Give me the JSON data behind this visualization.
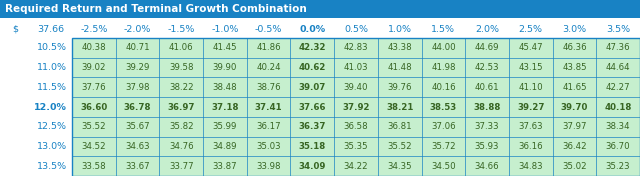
{
  "title": "Required Return and Terminal Growth Combination",
  "title_bg": "#1882C4",
  "title_fg": "#FFFFFF",
  "header_label_dollar": "$",
  "header_label_value": "37.66",
  "col_headers": [
    "-2.5%",
    "-2.0%",
    "-1.5%",
    "-1.0%",
    "-0.5%",
    "0.0%",
    "0.5%",
    "1.0%",
    "1.5%",
    "2.0%",
    "2.5%",
    "3.0%",
    "3.5%"
  ],
  "row_headers": [
    "10.5%",
    "11.0%",
    "11.5%",
    "12.0%",
    "12.5%",
    "13.0%",
    "13.5%"
  ],
  "bold_col": "0.0%",
  "bold_row": "12.0%",
  "data": [
    [
      40.38,
      40.71,
      41.06,
      41.45,
      41.86,
      42.32,
      42.83,
      43.38,
      44.0,
      44.69,
      45.47,
      46.36,
      47.36
    ],
    [
      39.02,
      39.29,
      39.58,
      39.9,
      40.24,
      40.62,
      41.03,
      41.48,
      41.98,
      42.53,
      43.15,
      43.85,
      44.64
    ],
    [
      37.76,
      37.98,
      38.22,
      38.48,
      38.76,
      39.07,
      39.4,
      39.76,
      40.16,
      40.61,
      41.1,
      41.65,
      42.27
    ],
    [
      36.6,
      36.78,
      36.97,
      37.18,
      37.41,
      37.66,
      37.92,
      38.21,
      38.53,
      38.88,
      39.27,
      39.7,
      40.18
    ],
    [
      35.52,
      35.67,
      35.82,
      35.99,
      36.17,
      36.37,
      36.58,
      36.81,
      37.06,
      37.33,
      37.63,
      37.97,
      38.34
    ],
    [
      34.52,
      34.63,
      34.76,
      34.89,
      35.03,
      35.18,
      35.35,
      35.52,
      35.72,
      35.93,
      36.16,
      36.42,
      36.7
    ],
    [
      33.58,
      33.67,
      33.77,
      33.87,
      33.98,
      34.09,
      34.22,
      34.35,
      34.5,
      34.66,
      34.83,
      35.02,
      35.23
    ]
  ],
  "cell_bg": "#C6EFCE",
  "cell_fg": "#376523",
  "header_row_fg": "#1882C4",
  "table_border_color": "#1882C4",
  "fig_bg": "#FFFFFF",
  "title_fontsize": 7.5,
  "header_fontsize": 6.8,
  "cell_fontsize": 6.2,
  "row_label_fontsize": 6.8
}
